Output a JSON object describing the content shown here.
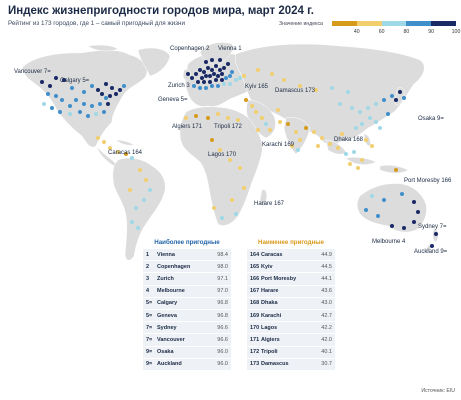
{
  "title": "Индекс жизнепригодности городов мира, март 2024 г.",
  "subtitle": "Рейтинг из 173 городов, где 1 – самый пригодный для жизни",
  "legend": {
    "title": "Значение индекса",
    "ticks": [
      "40",
      "60",
      "80",
      "90",
      "100"
    ],
    "colors": [
      "#d79b1c",
      "#f2cf6c",
      "#9fd8e6",
      "#3f8fcb",
      "#1a2a66"
    ]
  },
  "colors": {
    "land": "#dcdcdc",
    "ocean": "#ffffff",
    "label": "#1b2a44"
  },
  "labels": [
    {
      "id": "copenhagen",
      "text": "Copenhagen 2"
    },
    {
      "id": "vienna",
      "text": "Vienna 1"
    },
    {
      "id": "vancouver",
      "text": "Vancouver 7="
    },
    {
      "id": "calgary",
      "text": "Calgary 5="
    },
    {
      "id": "zurich",
      "text": "Zurich 3"
    },
    {
      "id": "geneva",
      "text": "Geneva 5="
    },
    {
      "id": "kyiv",
      "text": "Kyiv 165"
    },
    {
      "id": "damascus",
      "text": "Damascus 173"
    },
    {
      "id": "osaka",
      "text": "Osaka 9="
    },
    {
      "id": "algiers",
      "text": "Algiers 171"
    },
    {
      "id": "tripoli",
      "text": "Tripoli 172"
    },
    {
      "id": "dhaka",
      "text": "Dhaka 168"
    },
    {
      "id": "karachi",
      "text": "Karachi 169"
    },
    {
      "id": "caracas",
      "text": "Caracas 164"
    },
    {
      "id": "lagos",
      "text": "Lagos 170"
    },
    {
      "id": "portmoresby",
      "text": "Port Moresby 166"
    },
    {
      "id": "harare",
      "text": "Harare 167"
    },
    {
      "id": "sydney",
      "text": "Sydney 7="
    },
    {
      "id": "melbourne",
      "text": "Melbourne 4"
    },
    {
      "id": "auckland",
      "text": "Auckland 9="
    }
  ],
  "best": {
    "heading": "Наиболее пригодные",
    "rows": [
      {
        "rank": "1",
        "city": "Vienna",
        "score": "98.4"
      },
      {
        "rank": "2",
        "city": "Copenhagen",
        "score": "98.0"
      },
      {
        "rank": "3",
        "city": "Zurich",
        "score": "97.1"
      },
      {
        "rank": "4",
        "city": "Melbourne",
        "score": "97.0"
      },
      {
        "rank": "5=",
        "city": "Calgary",
        "score": "96.8"
      },
      {
        "rank": "5=",
        "city": "Geneva",
        "score": "96.8"
      },
      {
        "rank": "7=",
        "city": "Sydney",
        "score": "96.6"
      },
      {
        "rank": "7=",
        "city": "Vancouver",
        "score": "96.6"
      },
      {
        "rank": "9=",
        "city": "Osaka",
        "score": "96.0"
      },
      {
        "rank": "9=",
        "city": "Auckland",
        "score": "96.0"
      }
    ]
  },
  "worst": {
    "heading": "Наименее пригодные",
    "rows": [
      {
        "rank": "164",
        "city": "Caracas",
        "score": "44.9"
      },
      {
        "rank": "165",
        "city": "Kyiv",
        "score": "44.5"
      },
      {
        "rank": "166",
        "city": "Port Moresby",
        "score": "44.1"
      },
      {
        "rank": "167",
        "city": "Harare",
        "score": "43.6"
      },
      {
        "rank": "168",
        "city": "Dhaka",
        "score": "43.0"
      },
      {
        "rank": "169",
        "city": "Karachi",
        "score": "42.7"
      },
      {
        "rank": "170",
        "city": "Lagos",
        "score": "42.2"
      },
      {
        "rank": "171",
        "city": "Algiers",
        "score": "42.0"
      },
      {
        "rank": "172",
        "city": "Tripoli",
        "score": "40.1"
      },
      {
        "rank": "173",
        "city": "Damascus",
        "score": "30.7"
      }
    ]
  },
  "source": "Источник: EIU"
}
